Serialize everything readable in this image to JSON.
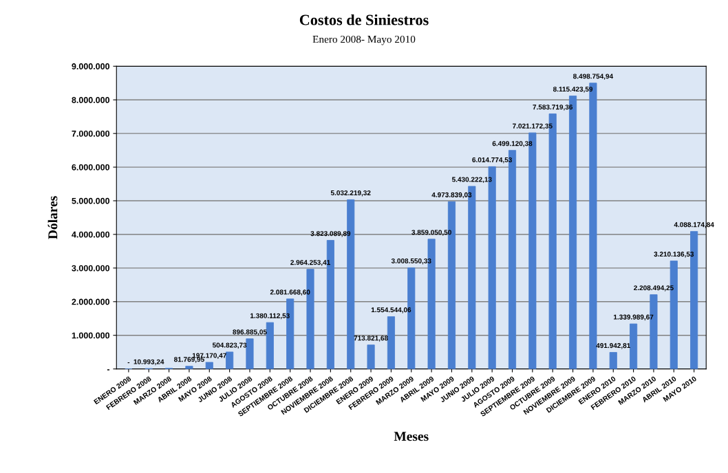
{
  "chart_data": {
    "type": "bar",
    "title": "Costos de Siniestros",
    "subtitle": "Enero 2008- Mayo 2010",
    "xlabel": "Meses",
    "ylabel": "Dólares",
    "categories": [
      "ENERO 2008",
      "FEBRERO 2008",
      "MARZO 2008",
      "ABRIL 2008",
      "MAYO 2008",
      "JUNIO 2008",
      "JULIO 2008",
      "AGOSTO 2008",
      "SEPTIEMBRE 2008",
      "OCTUBRE 2008",
      "NOVIEMBRE 2008",
      "DICIEMBRE 2008",
      "ENERO 2009",
      "FEBRERO 2009",
      "MARZO 2009",
      "ABRIL 2009",
      "MAYO 2009",
      "JUNIO 2009",
      "JULIO 2009",
      "AGOSTO 2009",
      "SEPTIEMBRE 2009",
      "OCTUBRE 2009",
      "NOVIEMBRE 2009",
      "DICIEMBRE 2009",
      "ENERO 2010",
      "FEBRERO 2010",
      "MARZO 2010",
      "ABRIL 2010",
      "MAYO 2010"
    ],
    "values": [
      0,
      10993.24,
      20000,
      81769.95,
      197170.47,
      504823.73,
      896885.05,
      1380112.53,
      2081668.6,
      2964253.41,
      3823089.89,
      5032219.32,
      713821.68,
      1554544.06,
      3008550.33,
      3859050.5,
      4973839.03,
      5430222.13,
      6014774.53,
      6499120.38,
      7021172.35,
      7583719.36,
      8115423.59,
      8498754.94,
      491942.81,
      1339989.67,
      2208494.25,
      3210136.53,
      4088174.84
    ],
    "value_labels": [
      "-",
      "10.993,24",
      null,
      "81.769,95",
      "197.170,47",
      "504.823,73",
      "896.885,05",
      "1.380.112,53",
      "2.081.668,60",
      "2.964.253,41",
      "3.823.089,89",
      "5.032.219,32",
      "713.821,68",
      "1.554.544,06",
      "3.008.550,33",
      "3.859.050,50",
      "4.973.839,03",
      "5.430.222,13",
      "6.014.774,53",
      "6.499.120,38",
      "7.021.172,35",
      "7.583.719,36",
      "8.115.423,59",
      "8.498.754,94",
      "491.942,81",
      "1.339.989,67",
      "2.208.494,25",
      "3.210.136,53",
      "4.088.174,84"
    ],
    "color": "#4a7fd0",
    "ylim": [
      0,
      9000000
    ],
    "yticks": [
      {
        "value": 0,
        "label": "-"
      },
      {
        "value": 1000000,
        "label": "1.000.000"
      },
      {
        "value": 2000000,
        "label": "2.000.000"
      },
      {
        "value": 3000000,
        "label": "3.000.000"
      },
      {
        "value": 4000000,
        "label": "4.000.000"
      },
      {
        "value": 5000000,
        "label": "5.000.000"
      },
      {
        "value": 6000000,
        "label": "6.000.000"
      },
      {
        "value": 7000000,
        "label": "7.000.000"
      },
      {
        "value": 8000000,
        "label": "8.000.000"
      },
      {
        "value": 9000000,
        "label": "9.000.000"
      }
    ],
    "grid": "y",
    "legend": false
  }
}
